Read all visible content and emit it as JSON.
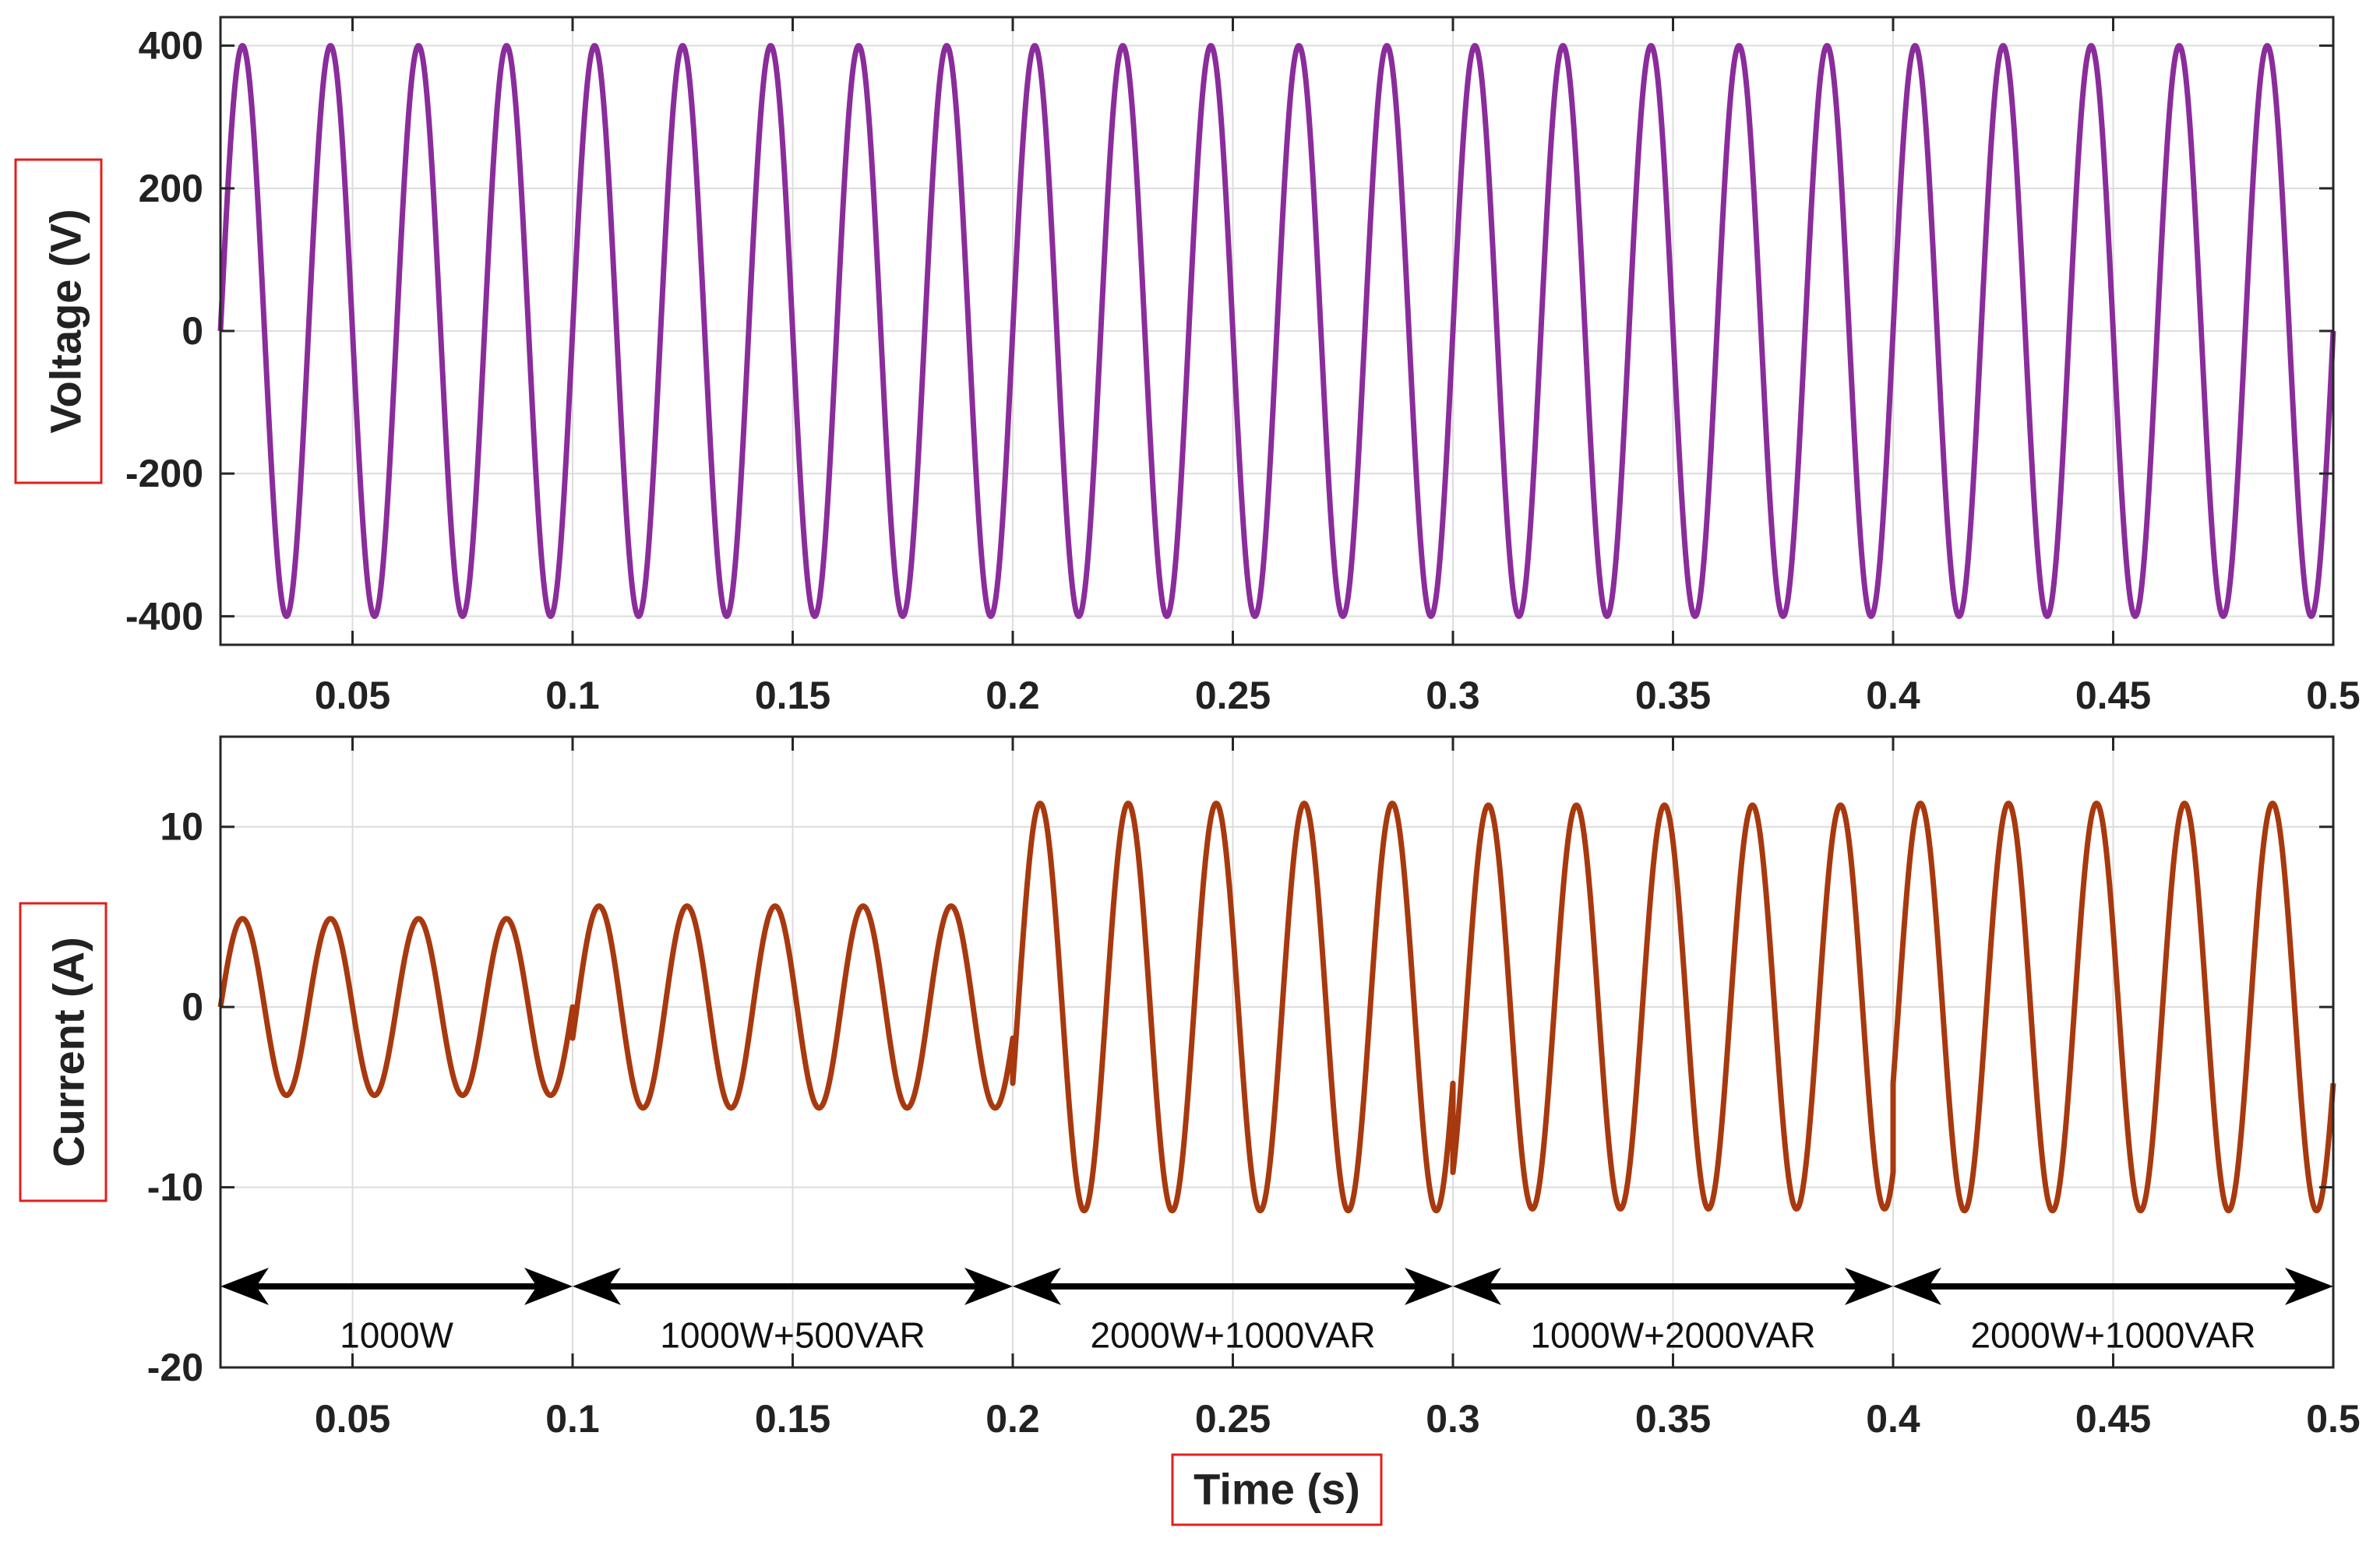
{
  "chart_data": [
    {
      "type": "line",
      "id": "voltage",
      "ylabel": "Voltage (V)",
      "xlim": [
        0.02,
        0.5
      ],
      "ylim": [
        -440,
        440
      ],
      "xticks": [
        0.05,
        0.1,
        0.15,
        0.2,
        0.25,
        0.3,
        0.35,
        0.4,
        0.45,
        0.5
      ],
      "xtick_labels": [
        "0.05",
        "0.1",
        "0.15",
        "0.2",
        "0.25",
        "0.3",
        "0.35",
        "0.4",
        "0.45",
        "0.5"
      ],
      "yticks": [
        -400,
        -200,
        0,
        200,
        400
      ],
      "ytick_labels": [
        "-400",
        "-200",
        "0",
        "200",
        "400"
      ],
      "grid": true,
      "line_color": "#8a2c9b",
      "series": [
        {
          "frequency_hz": 50,
          "amplitude": 400,
          "phase_deg": 0,
          "t_start": 0.02,
          "t_end": 0.5
        }
      ]
    },
    {
      "type": "line",
      "id": "current",
      "ylabel": "Current (A)",
      "xlabel": "Time (s)",
      "xlim": [
        0.02,
        0.5
      ],
      "ylim": [
        -20,
        15
      ],
      "xticks": [
        0.05,
        0.1,
        0.15,
        0.2,
        0.25,
        0.3,
        0.35,
        0.4,
        0.45,
        0.5
      ],
      "xtick_labels": [
        "0.05",
        "0.1",
        "0.15",
        "0.2",
        "0.25",
        "0.3",
        "0.35",
        "0.4",
        "0.45",
        "0.5"
      ],
      "yticks": [
        -20,
        -10,
        0,
        10
      ],
      "ytick_labels": [
        "-20",
        "-10",
        "0",
        "10"
      ],
      "grid": true,
      "line_color": "#a8390e",
      "series": [
        {
          "frequency_hz": 50,
          "amplitude": 4.9,
          "phase_deg": 0,
          "t_start": 0.02,
          "t_end": 0.1
        },
        {
          "frequency_hz": 50,
          "amplitude": 5.6,
          "phase_deg": -18,
          "t_start": 0.1,
          "t_end": 0.2
        },
        {
          "frequency_hz": 50,
          "amplitude": 11.3,
          "phase_deg": -22,
          "t_start": 0.2,
          "t_end": 0.3
        },
        {
          "frequency_hz": 50,
          "amplitude": 11.2,
          "phase_deg": -55,
          "t_start": 0.3,
          "t_end": 0.4
        },
        {
          "frequency_hz": 50,
          "amplitude": 11.3,
          "phase_deg": -22,
          "t_start": 0.4,
          "t_end": 0.5
        }
      ],
      "annotations": {
        "arrow_y": -15.5,
        "label_y": -18.2,
        "segments": [
          {
            "from": 0.02,
            "to": 0.1,
            "label": "1000W"
          },
          {
            "from": 0.1,
            "to": 0.2,
            "label": "1000W+500VAR"
          },
          {
            "from": 0.2,
            "to": 0.3,
            "label": "2000W+1000VAR"
          },
          {
            "from": 0.3,
            "to": 0.4,
            "label": "1000W+2000VAR"
          },
          {
            "from": 0.4,
            "to": 0.5,
            "label": "2000W+1000VAR"
          }
        ]
      }
    }
  ]
}
